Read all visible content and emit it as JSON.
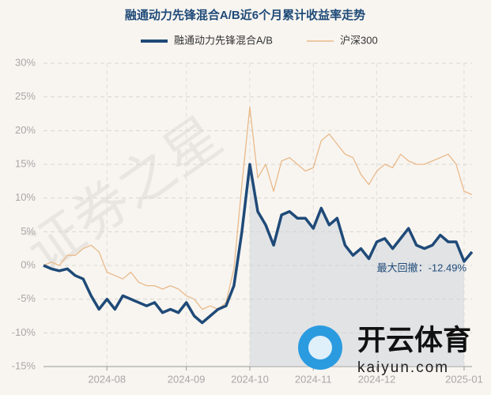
{
  "chart_data": {
    "type": "line",
    "title": "融通动力先锋混合A/B近6个月累计收益率走势",
    "categories": [
      null,
      null,
      null,
      null,
      null,
      null,
      null,
      null,
      "2024-08",
      null,
      null,
      null,
      null,
      null,
      null,
      null,
      null,
      null,
      "2024-09",
      null,
      null,
      null,
      null,
      null,
      null,
      null,
      "2024-10",
      null,
      null,
      null,
      null,
      null,
      null,
      null,
      "2024-11",
      null,
      null,
      null,
      null,
      null,
      null,
      null,
      "2024-12",
      null,
      null,
      null,
      null,
      null,
      null,
      null,
      null,
      null,
      null,
      "2025-01",
      null
    ],
    "series": [
      {
        "name": "融通动力先锋混合A/B",
        "color": "#1f4a78",
        "values": [
          0,
          -0.5,
          -0.8,
          -0.5,
          -1.5,
          -2.0,
          -4.5,
          -6.5,
          -5.0,
          -6.5,
          -4.5,
          -5.0,
          -5.5,
          -6.0,
          -5.5,
          -7.0,
          -6.5,
          -7.0,
          -5.5,
          -7.5,
          -8.5,
          -7.5,
          -6.5,
          -6.0,
          -3.0,
          5.0,
          15.0,
          8.0,
          6.0,
          3.0,
          7.5,
          8.0,
          7.0,
          7.0,
          5.5,
          8.5,
          6.0,
          7.0,
          3.0,
          1.5,
          2.5,
          1.0,
          3.5,
          4.0,
          2.5,
          4.0,
          5.5,
          3.0,
          2.5,
          3.0,
          4.5,
          3.5,
          3.5,
          0.6,
          2.0
        ]
      },
      {
        "name": "沪深300",
        "color": "#e9b98a",
        "values": [
          0,
          0.5,
          0.0,
          1.5,
          1.5,
          2.5,
          3.0,
          2.0,
          -1.0,
          -1.5,
          -2.0,
          -1.0,
          -2.5,
          -3.0,
          -3.0,
          -3.5,
          -3.0,
          -3.5,
          -4.5,
          -5.0,
          -6.5,
          -6.0,
          -6.5,
          -5.5,
          -0.5,
          12.0,
          23.5,
          13.0,
          15.0,
          11.0,
          15.5,
          16.0,
          15.0,
          14.0,
          14.5,
          18.5,
          19.5,
          18.0,
          16.5,
          16.0,
          13.5,
          12.0,
          14.0,
          15.0,
          14.5,
          16.5,
          15.5,
          15.0,
          15.0,
          15.5,
          16.0,
          16.5,
          15.0,
          11.0,
          10.5
        ]
      }
    ],
    "ylim": [
      -15,
      30
    ],
    "yticks": [
      {
        "value": -15,
        "label": "-15%"
      },
      {
        "value": -10,
        "label": "-10%"
      },
      {
        "value": -5,
        "label": "-5%"
      },
      {
        "value": 0,
        "label": "0%"
      },
      {
        "value": 5,
        "label": "5%"
      },
      {
        "value": 10,
        "label": "10%"
      },
      {
        "value": 15,
        "label": "15%"
      },
      {
        "value": 20,
        "label": "20%"
      },
      {
        "value": 25,
        "label": "25%"
      },
      {
        "value": 30,
        "label": "30%"
      }
    ],
    "grid": true,
    "annotation": "最大回撤：-12.49%",
    "watermark": "证券之星",
    "logo_text": "开云体育",
    "logo_url": "kaiyun.com"
  }
}
